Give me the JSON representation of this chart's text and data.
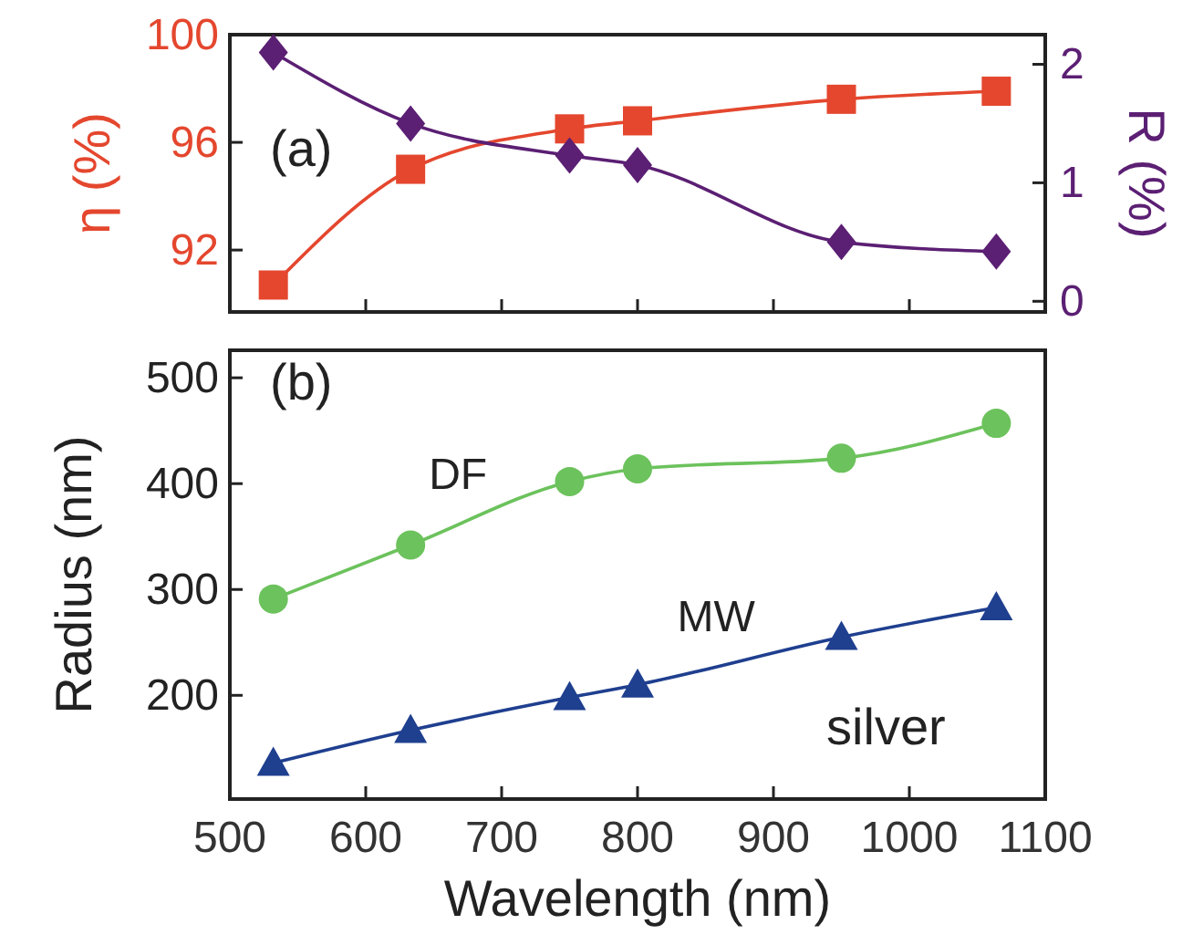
{
  "chart_data": [
    {
      "type": "line",
      "ylabel": "η (%)",
      "y2label": "R (%)",
      "annotations": [
        "(a)"
      ],
      "xlim": [
        500,
        1100
      ],
      "xticks": [
        {
          "value": 500,
          "label": null
        },
        {
          "value": 600,
          "label": null
        },
        {
          "value": 700,
          "label": null
        },
        {
          "value": 800,
          "label": null
        },
        {
          "value": 900,
          "label": null
        },
        {
          "value": 1000,
          "label": null
        },
        {
          "value": 1100,
          "label": null
        }
      ],
      "ylim": [
        89.7,
        100
      ],
      "yticks": [
        92,
        96,
        100
      ],
      "y2lim": [
        -0.09,
        2.25
      ],
      "y2ticks": [
        0,
        1,
        2
      ],
      "tick_labels": "y",
      "x": [
        532,
        633,
        750,
        800,
        950,
        1064
      ],
      "series": [
        {
          "color": "#e4472e",
          "marker": "square",
          "values": [
            90.7,
            95.0,
            96.5,
            96.8,
            97.6,
            97.9
          ]
        },
        {
          "color": "#5b1f73",
          "marker": "diamond",
          "axis": "y2",
          "values": [
            2.1,
            1.5,
            1.23,
            1.15,
            0.5,
            0.42
          ]
        }
      ]
    },
    {
      "type": "line",
      "xlabel": "Wavelength (nm)",
      "ylabel": "Radius (nm)",
      "annotations": [
        "(b)",
        "silver"
      ],
      "xlim": [
        500,
        1100
      ],
      "xticks": [
        500,
        600,
        700,
        800,
        900,
        1000,
        1100
      ],
      "ylim": [
        102,
        526
      ],
      "yticks": [
        200,
        300,
        400,
        500
      ],
      "x": [
        532,
        633,
        750,
        800,
        950,
        1064
      ],
      "series": [
        {
          "name": "DF",
          "color": "#6cc25c",
          "marker": "circle",
          "values": [
            291,
            342,
            402,
            414,
            424,
            457
          ]
        },
        {
          "name": "MW",
          "color": "#1f3f8f",
          "marker": "triangle",
          "values": [
            136,
            167,
            198,
            210,
            255,
            283
          ]
        }
      ]
    }
  ]
}
